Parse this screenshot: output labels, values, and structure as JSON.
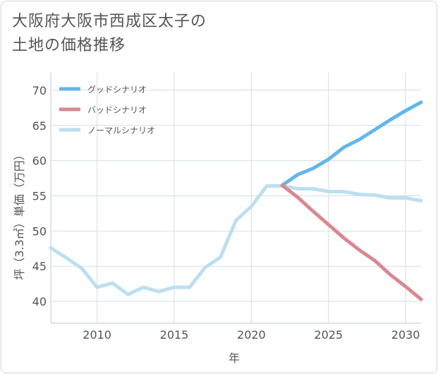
{
  "title": "大阪府大阪市西成区太子の\n土地の価格推移",
  "chart_data": {
    "type": "line",
    "xlabel": "年",
    "ylabel": "坪（3.3㎡）単価（万円）",
    "xlim": [
      2007,
      2031
    ],
    "ylim": [
      36.9,
      72.5
    ],
    "xticks": [
      2010,
      2015,
      2020,
      2025,
      2030
    ],
    "yticks": [
      40,
      45,
      50,
      55,
      60,
      65,
      70
    ],
    "legend_position": "top-left",
    "grid": true,
    "series": [
      {
        "name": "グッドシナリオ",
        "color": "#62b7ea",
        "x": [
          2022,
          2023,
          2024,
          2025,
          2026,
          2027,
          2028,
          2029,
          2030,
          2031
        ],
        "y": [
          56.5,
          58.0,
          58.9,
          60.2,
          61.9,
          63.0,
          64.4,
          65.8,
          67.1,
          68.3
        ]
      },
      {
        "name": "バッドシナリオ",
        "color": "#da8890",
        "x": [
          2022,
          2023,
          2024,
          2025,
          2026,
          2027,
          2028,
          2029,
          2030,
          2031
        ],
        "y": [
          56.5,
          54.8,
          52.8,
          50.9,
          49.0,
          47.3,
          45.8,
          43.8,
          42.1,
          40.3
        ]
      },
      {
        "name": "ノーマルシナリオ",
        "color": "#bcdff0",
        "x": [
          2007,
          2008,
          2009,
          2010,
          2011,
          2012,
          2013,
          2014,
          2015,
          2016,
          2017,
          2018,
          2019,
          2020,
          2021,
          2022,
          2023,
          2024,
          2025,
          2026,
          2027,
          2028,
          2029,
          2030,
          2031
        ],
        "y": [
          47.6,
          46.2,
          44.7,
          42.0,
          42.6,
          41.0,
          42.0,
          41.4,
          42.0,
          42.0,
          44.8,
          46.3,
          51.5,
          53.5,
          56.4,
          56.4,
          56.0,
          56.0,
          55.6,
          55.6,
          55.2,
          55.1,
          54.7,
          54.7,
          54.3
        ]
      }
    ]
  }
}
